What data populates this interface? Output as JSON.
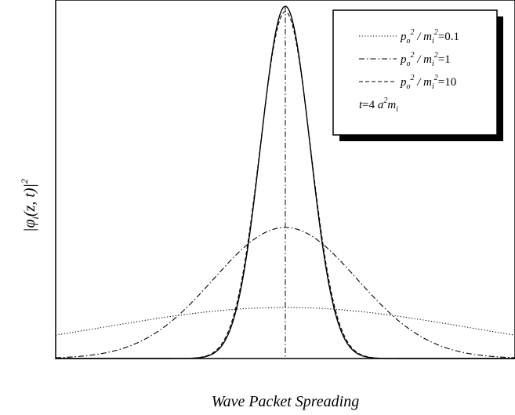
{
  "chart_data": {
    "type": "line",
    "title": "",
    "xlabel": "Wave Packet Spreading",
    "ylabel": {
      "prefix": "|φ",
      "subscript": "i",
      "args": "(z, t)|",
      "power": "2"
    },
    "xlim": [
      -4,
      4
    ],
    "ylim": [
      0,
      1.0
    ],
    "grid": false,
    "legend_position": "top-right",
    "center_line": {
      "x": 0,
      "style": "dash-dot"
    },
    "series": [
      {
        "key": "p01",
        "style": "dotted",
        "legend": {
          "p": "p",
          "p_sub": "o",
          "p_sup": "2",
          "m": "m",
          "m_sub": "i",
          "m_sup": "2",
          "rel": "=",
          "value": "0.1"
        },
        "peak": 0.145,
        "sigma": 3.2
      },
      {
        "key": "p1",
        "style": "dash-dot",
        "legend": {
          "p": "p",
          "p_sub": "o",
          "p_sup": "2",
          "m": "m",
          "m_sub": "i",
          "m_sup": "2",
          "rel": "=",
          "value": "1"
        },
        "peak": 0.372,
        "sigma": 1.25
      },
      {
        "key": "p10",
        "style": "dashed",
        "legend": {
          "p": "p",
          "p_sub": "o",
          "p_sup": "2",
          "m": "m",
          "m_sub": "i",
          "m_sup": "2",
          "rel": "=",
          "value": "10"
        },
        "peak": 0.985,
        "sigma": 0.44
      },
      {
        "key": "solid",
        "style": "solid",
        "peak": 1.0,
        "sigma": 0.43
      }
    ],
    "time_label": {
      "t": "t",
      "eq": "=",
      "coef": "4",
      "a": "a",
      "a_sup": "2",
      "m": "m",
      "m_sub": "i"
    }
  }
}
